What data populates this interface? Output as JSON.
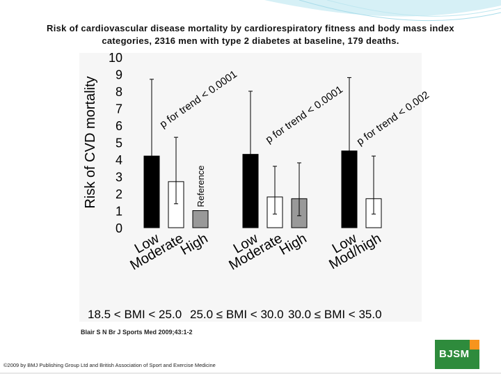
{
  "slide": {
    "title_line1": "Risk of cardiovascular disease mortality by cardiorespiratory fitness and body mass index",
    "title_line2": "categories, 2316 men with type 2 diabetes at baseline, 179 deaths.",
    "citation": "Blair S N Br J Sports Med 2009;43:1-2",
    "copyright": "©2009 by BMJ Publishing Group Ltd and British Association of Sport and Exercise Medicine",
    "logo_text": "BJSM",
    "colors": {
      "logo_green": "#2e8b3c",
      "logo_orange": "#f7941d",
      "swoosh": "#bfe7f0"
    }
  },
  "chart_data": {
    "type": "bar",
    "ylabel": "Risk of CVD mortality",
    "ylim": [
      0,
      10
    ],
    "yticks": [
      "0",
      "1",
      "2",
      "3",
      "4",
      "5",
      "6",
      "7",
      "8",
      "9",
      "10"
    ],
    "reference_label": "Reference",
    "groups": [
      {
        "label": "18.5 < BMI < 25.0",
        "trend": "p for trend < 0.0001",
        "bars": [
          {
            "category": "Low",
            "value": 4.2,
            "ci_low": 1.9,
            "ci_high": 8.7,
            "fill": "#000000"
          },
          {
            "category": "Moderate",
            "value": 2.7,
            "ci_low": 1.4,
            "ci_high": 5.3,
            "fill": "#ffffff"
          },
          {
            "category": "High",
            "value": 1.0,
            "fill": "#999999"
          }
        ]
      },
      {
        "label": "25.0 ≤ BMI < 30.0",
        "trend": "p for trend < 0.0001",
        "bars": [
          {
            "category": "Low",
            "value": 4.3,
            "ci_low": 1.9,
            "ci_high": 8.0,
            "fill": "#000000"
          },
          {
            "category": "Moderate",
            "value": 1.8,
            "ci_low": 0.8,
            "ci_high": 3.6,
            "fill": "#ffffff"
          },
          {
            "category": "High",
            "value": 1.7,
            "ci_low": 0.7,
            "ci_high": 3.8,
            "fill": "#999999"
          }
        ]
      },
      {
        "label": "30.0 ≤ BMI < 35.0",
        "trend": "p for trend < 0.002",
        "bars": [
          {
            "category": "Low",
            "value": 4.5,
            "ci_low": 2.0,
            "ci_high": 8.8,
            "fill": "#000000"
          },
          {
            "category": "Mod/high",
            "value": 1.7,
            "ci_low": 0.8,
            "ci_high": 4.2,
            "fill": "#ffffff"
          }
        ]
      }
    ]
  }
}
